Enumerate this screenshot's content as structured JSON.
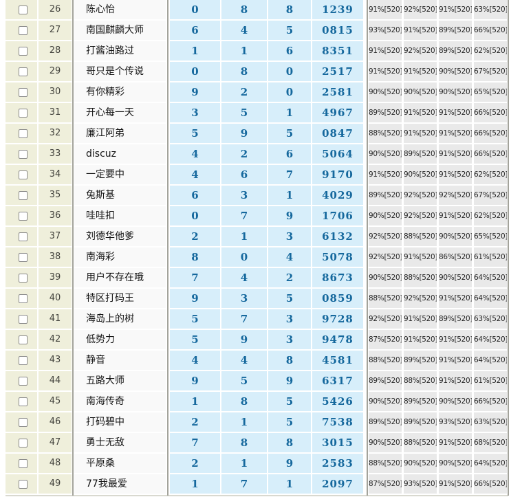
{
  "colors": {
    "checkbox_col_bg": "#EFEFDB",
    "name_col_bg": "#F9F9F9",
    "number_col_bg": "#D7EEFA",
    "stats_col_bg": "#E9E9E9",
    "digit_text": "#15689D",
    "separator_line": "#A3A39B"
  },
  "rows": [
    {
      "index": "26",
      "name": "陈心怡",
      "n1": "0",
      "n2": "8",
      "n3": "8",
      "code": "1239",
      "stats": [
        "91%[520]",
        "92%[520]",
        "91%[520]",
        "63%[520]"
      ]
    },
    {
      "index": "27",
      "name": "南国麒麟大师",
      "n1": "6",
      "n2": "4",
      "n3": "5",
      "code": "0815",
      "stats": [
        "93%[520]",
        "91%[520]",
        "89%[520]",
        "66%[520]"
      ]
    },
    {
      "index": "28",
      "name": "打酱油路过",
      "n1": "1",
      "n2": "1",
      "n3": "6",
      "code": "8351",
      "stats": [
        "91%[520]",
        "92%[520]",
        "89%[520]",
        "62%[520]"
      ]
    },
    {
      "index": "29",
      "name": "哥只是个传说",
      "n1": "0",
      "n2": "8",
      "n3": "0",
      "code": "2517",
      "stats": [
        "91%[520]",
        "91%[520]",
        "90%[520]",
        "67%[520]"
      ]
    },
    {
      "index": "30",
      "name": "有你精彩",
      "n1": "9",
      "n2": "2",
      "n3": "0",
      "code": "2581",
      "stats": [
        "90%[520]",
        "90%[520]",
        "90%[520]",
        "65%[520]"
      ]
    },
    {
      "index": "31",
      "name": "开心每一天",
      "n1": "3",
      "n2": "5",
      "n3": "1",
      "code": "4967",
      "stats": [
        "89%[520]",
        "91%[520]",
        "91%[520]",
        "66%[520]"
      ]
    },
    {
      "index": "32",
      "name": "廉江阿弟",
      "n1": "5",
      "n2": "9",
      "n3": "5",
      "code": "0847",
      "stats": [
        "88%[520]",
        "91%[520]",
        "91%[520]",
        "66%[520]"
      ]
    },
    {
      "index": "33",
      "name": "discuz",
      "n1": "4",
      "n2": "2",
      "n3": "6",
      "code": "5064",
      "stats": [
        "90%[520]",
        "89%[520]",
        "91%[520]",
        "66%[520]"
      ]
    },
    {
      "index": "34",
      "name": "一定要中",
      "n1": "4",
      "n2": "6",
      "n3": "7",
      "code": "9170",
      "stats": [
        "91%[520]",
        "90%[520]",
        "91%[520]",
        "62%[520]"
      ]
    },
    {
      "index": "35",
      "name": "兔斯基",
      "n1": "6",
      "n2": "3",
      "n3": "1",
      "code": "4029",
      "stats": [
        "89%[520]",
        "92%[520]",
        "92%[520]",
        "67%[520]"
      ]
    },
    {
      "index": "36",
      "name": "哇哇扣",
      "n1": "0",
      "n2": "7",
      "n3": "9",
      "code": "1706",
      "stats": [
        "90%[520]",
        "92%[520]",
        "91%[520]",
        "62%[520]"
      ]
    },
    {
      "index": "37",
      "name": "刘德华他爹",
      "n1": "2",
      "n2": "1",
      "n3": "3",
      "code": "6132",
      "stats": [
        "92%[520]",
        "88%[520]",
        "90%[520]",
        "65%[520]"
      ]
    },
    {
      "index": "38",
      "name": "南海彩",
      "n1": "8",
      "n2": "0",
      "n3": "4",
      "code": "5078",
      "stats": [
        "92%[520]",
        "91%[520]",
        "86%[520]",
        "61%[520]"
      ]
    },
    {
      "index": "39",
      "name": "用户不存在哦",
      "n1": "7",
      "n2": "4",
      "n3": "2",
      "code": "8673",
      "stats": [
        "90%[520]",
        "88%[520]",
        "90%[520]",
        "64%[520]"
      ]
    },
    {
      "index": "40",
      "name": "特区打码王",
      "n1": "9",
      "n2": "3",
      "n3": "5",
      "code": "0859",
      "stats": [
        "88%[520]",
        "92%[520]",
        "91%[520]",
        "64%[520]"
      ]
    },
    {
      "index": "41",
      "name": "海岛上的树",
      "n1": "5",
      "n2": "7",
      "n3": "3",
      "code": "9728",
      "stats": [
        "92%[520]",
        "91%[520]",
        "89%[520]",
        "63%[520]"
      ]
    },
    {
      "index": "42",
      "name": "低势力",
      "n1": "5",
      "n2": "9",
      "n3": "3",
      "code": "9478",
      "stats": [
        "87%[520]",
        "91%[520]",
        "91%[520]",
        "64%[520]"
      ]
    },
    {
      "index": "43",
      "name": "静音",
      "n1": "4",
      "n2": "4",
      "n3": "8",
      "code": "4581",
      "stats": [
        "88%[520]",
        "89%[520]",
        "91%[520]",
        "64%[520]"
      ]
    },
    {
      "index": "44",
      "name": "五路大师",
      "n1": "9",
      "n2": "5",
      "n3": "9",
      "code": "6317",
      "stats": [
        "89%[520]",
        "88%[520]",
        "91%[520]",
        "61%[520]"
      ]
    },
    {
      "index": "45",
      "name": "南海传奇",
      "n1": "1",
      "n2": "8",
      "n3": "5",
      "code": "5426",
      "stats": [
        "90%[520]",
        "89%[520]",
        "90%[520]",
        "66%[520]"
      ]
    },
    {
      "index": "46",
      "name": "打码碧中",
      "n1": "2",
      "n2": "1",
      "n3": "5",
      "code": "7538",
      "stats": [
        "89%[520]",
        "89%[520]",
        "93%[520]",
        "63%[520]"
      ]
    },
    {
      "index": "47",
      "name": "勇士无敌",
      "n1": "7",
      "n2": "8",
      "n3": "8",
      "code": "3015",
      "stats": [
        "90%[520]",
        "88%[520]",
        "91%[520]",
        "68%[520]"
      ]
    },
    {
      "index": "48",
      "name": "平原桑",
      "n1": "2",
      "n2": "1",
      "n3": "9",
      "code": "2583",
      "stats": [
        "88%[520]",
        "90%[520]",
        "90%[520]",
        "64%[520]"
      ]
    },
    {
      "index": "49",
      "name": "77我最爱",
      "n1": "1",
      "n2": "7",
      "n3": "1",
      "code": "2097",
      "stats": [
        "87%[520]",
        "93%[520]",
        "91%[520]",
        "66%[520]"
      ]
    }
  ]
}
